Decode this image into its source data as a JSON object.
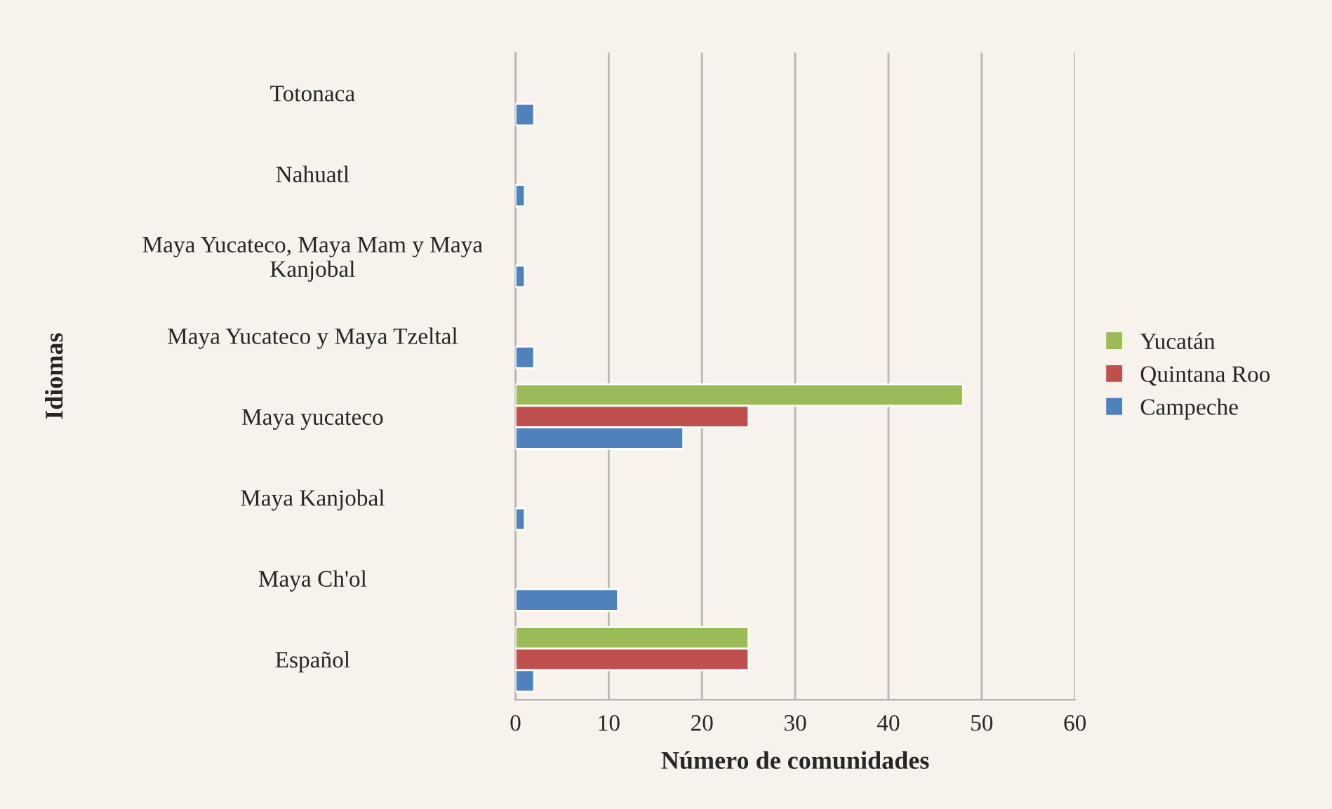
{
  "chart_data": {
    "type": "bar",
    "orientation": "horizontal",
    "xlabel": "Número de comunidades",
    "ylabel": "Idiomas",
    "categories": [
      "Totonaca",
      "Nahuatl",
      "Maya Yucateco, Maya Mam y Maya\nKanjobal",
      "Maya Yucateco y Maya Tzeltal",
      "Maya yucateco",
      "Maya Kanjobal",
      "Maya Ch'ol",
      "Español"
    ],
    "series": [
      {
        "name": "Yucatán",
        "color": "#9bbb59",
        "values": [
          null,
          null,
          null,
          null,
          48,
          null,
          null,
          25
        ]
      },
      {
        "name": "Quintana Roo",
        "color": "#c0504d",
        "values": [
          null,
          null,
          null,
          null,
          25,
          null,
          null,
          25
        ]
      },
      {
        "name": "Campeche",
        "color": "#4f81bd",
        "values": [
          2,
          1,
          1,
          2,
          18,
          1,
          11,
          2
        ]
      }
    ],
    "xlim": [
      0,
      60
    ],
    "xticks": [
      0,
      10,
      20,
      30,
      40,
      50,
      60
    ],
    "grid": "x",
    "legend": "right"
  }
}
